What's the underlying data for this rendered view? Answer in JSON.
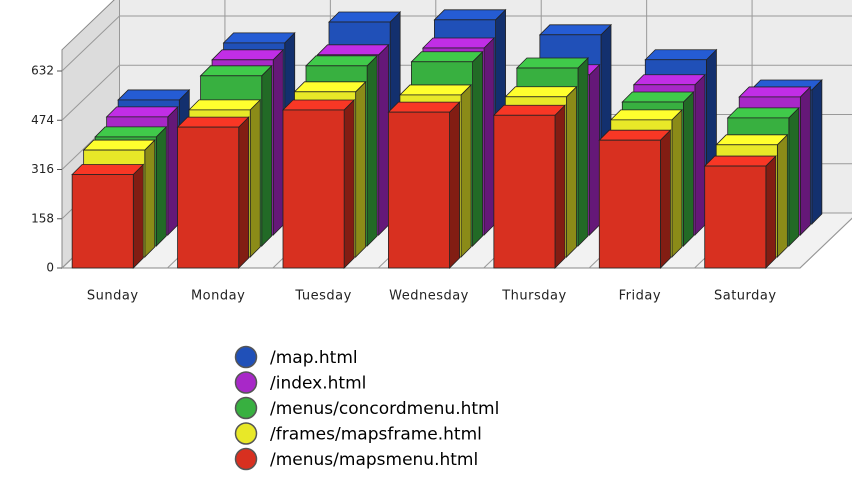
{
  "chart_data": {
    "type": "bar3d",
    "categories": [
      "Sunday",
      "Monday",
      "Tuesday",
      "Wednesday",
      "Thursday",
      "Friday",
      "Saturday"
    ],
    "series": [
      {
        "name": "/map.html",
        "color": "#2050b8",
        "values": [
          398,
          581,
          648,
          655,
          607,
          527,
          430
        ]
      },
      {
        "name": "/index.html",
        "color": "#a828c8",
        "values": [
          379,
          562,
          578,
          600,
          514,
          482,
          443
        ]
      },
      {
        "name": "/menus/concordmenu.html",
        "color": "#38b040",
        "values": [
          350,
          546,
          578,
          591,
          571,
          462,
          411
        ]
      },
      {
        "name": "/frames/mapsframe.html",
        "color": "#e8e828",
        "values": [
          343,
          472,
          530,
          520,
          514,
          440,
          360
        ]
      },
      {
        "name": "/menus/mapsmenu.html",
        "color": "#d83020",
        "values": [
          300,
          452,
          507,
          500,
          490,
          410,
          327
        ]
      }
    ],
    "ylim": [
      0,
      700
    ],
    "yticks": [
      0,
      158,
      316,
      474,
      632
    ],
    "grid": true
  }
}
